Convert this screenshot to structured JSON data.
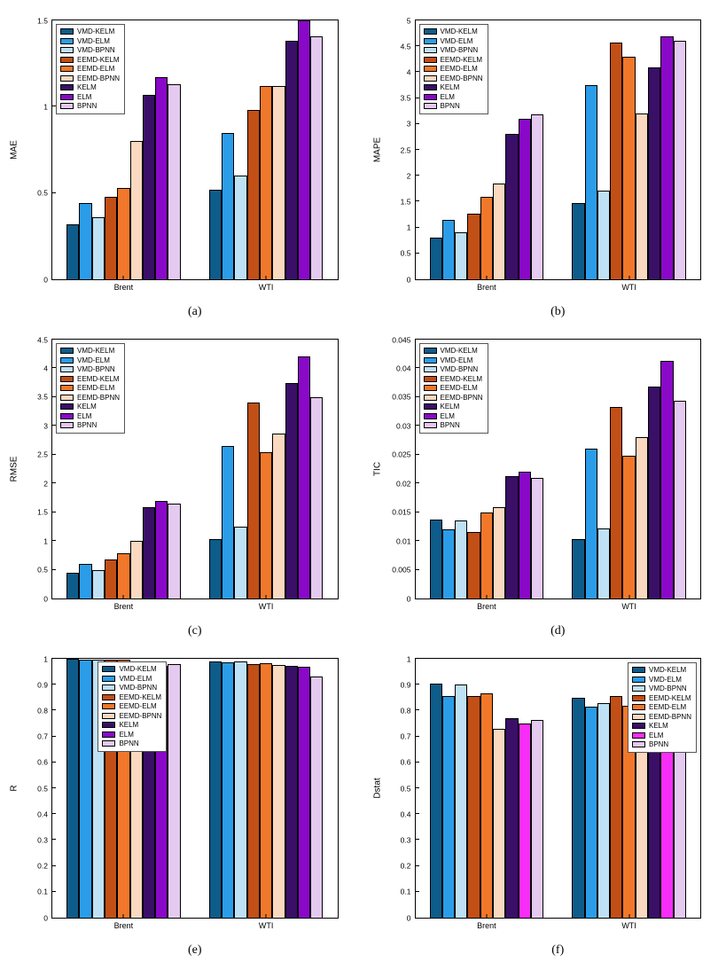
{
  "page": {
    "background": "#ffffff"
  },
  "palette": {
    "VMD-KELM": "#0e5c8a",
    "VMD-ELM": "#2b9de8",
    "VMD-BPNN": "#bfe1f5",
    "EEMD-KELM": "#c24f16",
    "EEMD-ELM": "#f1782a",
    "EEMD-BPNN": "#fad9c0",
    "KELM": "#3a0f68",
    "ELM": "#8a08c8",
    "BPNN": "#e4c9f0"
  },
  "legend_order": [
    "VMD-KELM",
    "VMD-ELM",
    "VMD-BPNN",
    "EEMD-KELM",
    "EEMD-ELM",
    "EEMD-BPNN",
    "KELM",
    "ELM",
    "BPNN"
  ],
  "chart_data": [
    {
      "panel": "a",
      "type": "bar",
      "caption": "(a)",
      "title": "",
      "xlabel": "",
      "ylabel": "MAE",
      "ylim": [
        0,
        1.5
      ],
      "grid": false,
      "legend_pos": "top-left",
      "ytick_values": [
        0,
        0.5,
        1,
        1.5
      ],
      "ytick_labels": [
        "0",
        "0.5",
        "1",
        "1.5"
      ],
      "categories": [
        "Brent",
        "WTI"
      ],
      "series": [
        {
          "name": "VMD-KELM",
          "values": [
            0.32,
            0.52
          ]
        },
        {
          "name": "VMD-ELM",
          "values": [
            0.44,
            0.85
          ]
        },
        {
          "name": "VMD-BPNN",
          "values": [
            0.36,
            0.6
          ]
        },
        {
          "name": "EEMD-KELM",
          "values": [
            0.48,
            0.98
          ]
        },
        {
          "name": "EEMD-ELM",
          "values": [
            0.53,
            1.12
          ]
        },
        {
          "name": "EEMD-BPNN",
          "values": [
            0.8,
            1.12
          ]
        },
        {
          "name": "KELM",
          "values": [
            1.07,
            1.38
          ]
        },
        {
          "name": "ELM",
          "values": [
            1.17,
            1.5
          ]
        },
        {
          "name": "BPNN",
          "values": [
            1.13,
            1.41
          ]
        }
      ]
    },
    {
      "panel": "b",
      "type": "bar",
      "caption": "(b)",
      "title": "",
      "xlabel": "",
      "ylabel": "MAPE",
      "ylim": [
        0,
        5
      ],
      "grid": false,
      "legend_pos": "top-left",
      "ytick_values": [
        0,
        0.5,
        1,
        1.5,
        2,
        2.5,
        3,
        3.5,
        4,
        4.5,
        5
      ],
      "ytick_labels": [
        "0",
        "0.5",
        "1",
        "1.5",
        "2",
        "2.5",
        "3",
        "3.5",
        "4",
        "4.5",
        "5"
      ],
      "categories": [
        "Brent",
        "WTI"
      ],
      "series": [
        {
          "name": "VMD-KELM",
          "values": [
            0.8,
            1.48
          ]
        },
        {
          "name": "VMD-ELM",
          "values": [
            1.15,
            3.75
          ]
        },
        {
          "name": "VMD-BPNN",
          "values": [
            0.9,
            1.72
          ]
        },
        {
          "name": "EEMD-KELM",
          "values": [
            1.27,
            4.58
          ]
        },
        {
          "name": "EEMD-ELM",
          "values": [
            1.6,
            4.3
          ]
        },
        {
          "name": "EEMD-BPNN",
          "values": [
            1.85,
            3.2
          ]
        },
        {
          "name": "KELM",
          "values": [
            2.8,
            4.1
          ]
        },
        {
          "name": "ELM",
          "values": [
            3.1,
            4.7
          ]
        },
        {
          "name": "BPNN",
          "values": [
            3.18,
            4.6
          ]
        }
      ]
    },
    {
      "panel": "c",
      "type": "bar",
      "caption": "(c)",
      "title": "",
      "xlabel": "",
      "ylabel": "RMSE",
      "ylim": [
        0,
        4.5
      ],
      "grid": false,
      "legend_pos": "top-left",
      "ytick_values": [
        0,
        0.5,
        1,
        1.5,
        2,
        2.5,
        3,
        3.5,
        4,
        4.5
      ],
      "ytick_labels": [
        "0",
        "0.5",
        "1",
        "1.5",
        "2",
        "2.5",
        "3",
        "3.5",
        "4",
        "4.5"
      ],
      "categories": [
        "Brent",
        "WTI"
      ],
      "series": [
        {
          "name": "VMD-KELM",
          "values": [
            0.45,
            1.03
          ]
        },
        {
          "name": "VMD-ELM",
          "values": [
            0.6,
            2.65
          ]
        },
        {
          "name": "VMD-BPNN",
          "values": [
            0.5,
            1.25
          ]
        },
        {
          "name": "EEMD-KELM",
          "values": [
            0.68,
            3.4
          ]
        },
        {
          "name": "EEMD-ELM",
          "values": [
            0.78,
            2.55
          ]
        },
        {
          "name": "EEMD-BPNN",
          "values": [
            1.0,
            2.87
          ]
        },
        {
          "name": "KELM",
          "values": [
            1.58,
            3.75
          ]
        },
        {
          "name": "ELM",
          "values": [
            1.7,
            4.2
          ]
        },
        {
          "name": "BPNN",
          "values": [
            1.65,
            3.5
          ]
        }
      ]
    },
    {
      "panel": "d",
      "type": "bar",
      "caption": "(d)",
      "title": "",
      "xlabel": "",
      "ylabel": "TIC",
      "ylim": [
        0,
        0.045
      ],
      "grid": false,
      "legend_pos": "top-left",
      "ytick_values": [
        0,
        0.005,
        0.01,
        0.015,
        0.02,
        0.025,
        0.03,
        0.035,
        0.04,
        0.045
      ],
      "ytick_labels": [
        "0",
        "0.005",
        "0.01",
        "0.015",
        "0.02",
        "0.025",
        "0.03",
        "0.035",
        "0.04",
        "0.045"
      ],
      "categories": [
        "Brent",
        "WTI"
      ],
      "series": [
        {
          "name": "VMD-KELM",
          "values": [
            0.0137,
            0.0103
          ]
        },
        {
          "name": "VMD-ELM",
          "values": [
            0.012,
            0.026
          ]
        },
        {
          "name": "VMD-BPNN",
          "values": [
            0.0135,
            0.0122
          ]
        },
        {
          "name": "EEMD-KELM",
          "values": [
            0.0115,
            0.0333
          ]
        },
        {
          "name": "EEMD-ELM",
          "values": [
            0.015,
            0.0248
          ]
        },
        {
          "name": "EEMD-BPNN",
          "values": [
            0.0158,
            0.028
          ]
        },
        {
          "name": "KELM",
          "values": [
            0.0212,
            0.0368
          ]
        },
        {
          "name": "ELM",
          "values": [
            0.022,
            0.0413
          ]
        },
        {
          "name": "BPNN",
          "values": [
            0.021,
            0.0343
          ]
        }
      ]
    },
    {
      "panel": "e",
      "type": "bar",
      "caption": "(e)",
      "title": "",
      "xlabel": "",
      "ylabel": "R",
      "ylim": [
        0,
        1
      ],
      "grid": false,
      "legend_pos": "top-center-left",
      "ytick_values": [
        0,
        0.1,
        0.2,
        0.3,
        0.4,
        0.5,
        0.6,
        0.7,
        0.8,
        0.9,
        1
      ],
      "ytick_labels": [
        "0",
        "0.1",
        "0.2",
        "0.3",
        "0.4",
        "0.5",
        "0.6",
        "0.7",
        "0.8",
        "0.9",
        "1"
      ],
      "categories": [
        "Brent",
        "WTI"
      ],
      "series": [
        {
          "name": "VMD-KELM",
          "values": [
            0.999,
            0.99
          ]
        },
        {
          "name": "VMD-ELM",
          "values": [
            0.998,
            0.988
          ]
        },
        {
          "name": "VMD-BPNN",
          "values": [
            0.998,
            0.99
          ]
        },
        {
          "name": "EEMD-KELM",
          "values": [
            0.997,
            0.978
          ]
        },
        {
          "name": "EEMD-ELM",
          "values": [
            0.995,
            0.982
          ]
        },
        {
          "name": "EEMD-BPNN",
          "values": [
            0.97,
            0.975
          ]
        },
        {
          "name": "KELM",
          "values": [
            0.988,
            0.972
          ]
        },
        {
          "name": "ELM",
          "values": [
            0.972,
            0.968
          ]
        },
        {
          "name": "BPNN",
          "values": [
            0.981,
            0.932
          ]
        }
      ]
    },
    {
      "panel": "f",
      "type": "bar",
      "caption": "(f)",
      "title": "",
      "xlabel": "",
      "ylabel": "Dstat",
      "ylim": [
        0,
        1
      ],
      "grid": false,
      "legend_pos": "top-right",
      "ytick_values": [
        0,
        0.1,
        0.2,
        0.3,
        0.4,
        0.5,
        0.6,
        0.7,
        0.8,
        0.9,
        1
      ],
      "ytick_labels": [
        "0",
        "0.1",
        "0.2",
        "0.3",
        "0.4",
        "0.5",
        "0.6",
        "0.7",
        "0.8",
        "0.9",
        "1"
      ],
      "categories": [
        "Brent",
        "WTI"
      ],
      "series": [
        {
          "name": "VMD-KELM",
          "values": [
            0.905,
            0.85
          ]
        },
        {
          "name": "VMD-ELM",
          "values": [
            0.855,
            0.815
          ]
        },
        {
          "name": "VMD-BPNN",
          "values": [
            0.9,
            0.83
          ]
        },
        {
          "name": "EEMD-KELM",
          "values": [
            0.855,
            0.855
          ]
        },
        {
          "name": "EEMD-ELM",
          "values": [
            0.865,
            0.82
          ]
        },
        {
          "name": "EEMD-BPNN",
          "values": [
            0.73,
            0.81
          ]
        },
        {
          "name": "KELM",
          "values": [
            0.77,
            0.8
          ]
        },
        {
          "name": "ELM",
          "values": [
            0.75,
            0.79
          ],
          "color": "#f72ef7"
        },
        {
          "name": "BPNN",
          "values": [
            0.765,
            0.765
          ]
        }
      ]
    }
  ]
}
